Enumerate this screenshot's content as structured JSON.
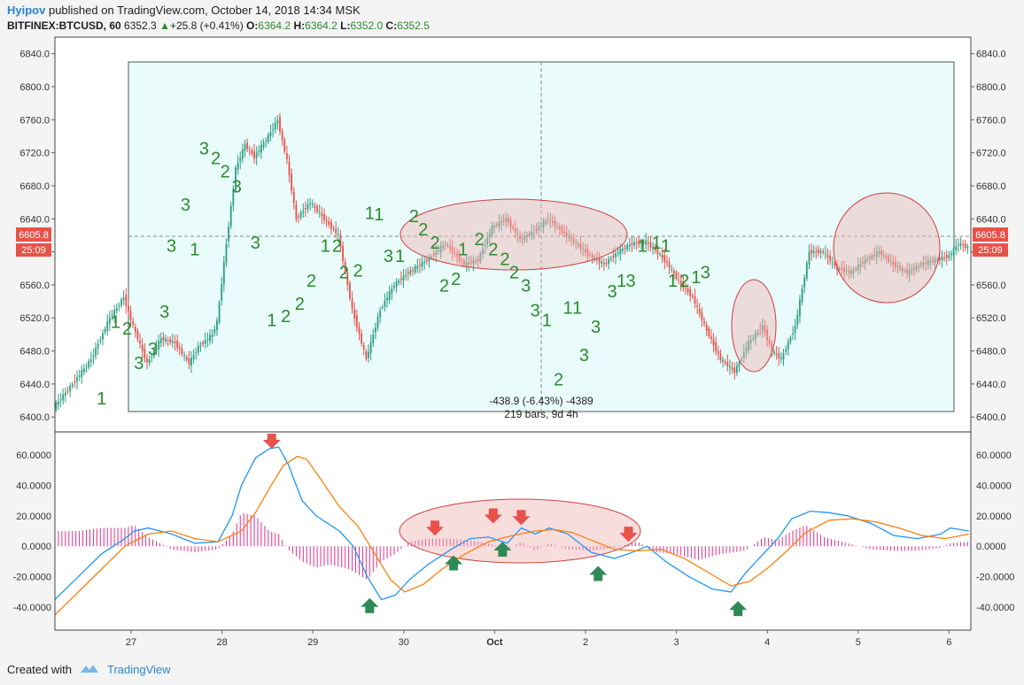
{
  "header": {
    "user": "Hyipov",
    "published": "published on TradingView.com, October 14, 2018 14:34 MSK",
    "symbol": "BITFINEX:BTCUSD, 60",
    "last": "6352.3",
    "change": "+25.8 (+0.41%)",
    "o_label": "O:",
    "o": "6364.2",
    "h_label": "H:",
    "h": "6364.2",
    "l_label": "L:",
    "l": "6352.0",
    "c_label": "C:",
    "c": "6352.5"
  },
  "footer": {
    "created": "Created with",
    "brand": "TradingView"
  },
  "colors": {
    "up": "#2e9e84",
    "down": "#e8524a",
    "macd": "#2196f3",
    "signal": "#ff7f0e",
    "hist": "#e0318a",
    "range_fill": "#e9fbfb"
  },
  "chart_data": [
    {
      "type": "candlestick",
      "title": "BITFINEX:BTCUSD, 60",
      "ylim": [
        6382,
        6860
      ],
      "y_ticks": [
        "6840.0",
        "6800.0",
        "6760.0",
        "6720.0",
        "6680.0",
        "6640.0",
        "6600.0",
        "6560.0",
        "6520.0",
        "6480.0",
        "6440.0",
        "6400.0"
      ],
      "x_ticks": [
        "27",
        "28",
        "29",
        "30",
        "Oct",
        "2",
        "3",
        "4",
        "5",
        "6"
      ],
      "price_label": "6605.8",
      "countdown": "25:09",
      "measure": {
        "line1": "-438.9 (-6.43%) -4389",
        "line2": "219 bars, 9d 4h"
      },
      "close_path": [
        [
          0,
          6412
        ],
        [
          8,
          6440
        ],
        [
          16,
          6470
        ],
        [
          24,
          6520
        ],
        [
          30,
          6545
        ],
        [
          34,
          6510
        ],
        [
          40,
          6465
        ],
        [
          46,
          6495
        ],
        [
          52,
          6490
        ],
        [
          58,
          6465
        ],
        [
          62,
          6485
        ],
        [
          68,
          6500
        ],
        [
          70,
          6515
        ],
        [
          74,
          6610
        ],
        [
          78,
          6700
        ],
        [
          82,
          6730
        ],
        [
          86,
          6715
        ],
        [
          92,
          6740
        ],
        [
          96,
          6760
        ],
        [
          100,
          6710
        ],
        [
          104,
          6640
        ],
        [
          110,
          6660
        ],
        [
          116,
          6640
        ],
        [
          122,
          6620
        ],
        [
          128,
          6530
        ],
        [
          134,
          6470
        ],
        [
          140,
          6530
        ],
        [
          146,
          6560
        ],
        [
          152,
          6575
        ],
        [
          160,
          6590
        ],
        [
          168,
          6610
        ],
        [
          176,
          6585
        ],
        [
          182,
          6590
        ],
        [
          188,
          6630
        ],
        [
          194,
          6640
        ],
        [
          200,
          6615
        ],
        [
          206,
          6625
        ],
        [
          212,
          6640
        ],
        [
          218,
          6625
        ],
        [
          224,
          6610
        ],
        [
          230,
          6595
        ],
        [
          236,
          6585
        ],
        [
          242,
          6600
        ],
        [
          248,
          6610
        ],
        [
          254,
          6612
        ],
        [
          258,
          6602
        ],
        [
          262,
          6590
        ],
        [
          268,
          6565
        ],
        [
          274,
          6545
        ],
        [
          280,
          6505
        ],
        [
          286,
          6470
        ],
        [
          292,
          6455
        ],
        [
          298,
          6490
        ],
        [
          304,
          6510
        ],
        [
          308,
          6480
        ],
        [
          312,
          6470
        ],
        [
          318,
          6510
        ],
        [
          324,
          6600
        ],
        [
          330,
          6600
        ],
        [
          336,
          6580
        ],
        [
          342,
          6575
        ],
        [
          348,
          6590
        ],
        [
          354,
          6600
        ],
        [
          360,
          6585
        ],
        [
          366,
          6575
        ],
        [
          372,
          6585
        ],
        [
          378,
          6590
        ],
        [
          384,
          6595
        ],
        [
          388,
          6610
        ],
        [
          392,
          6605
        ]
      ],
      "counts": [
        {
          "t": "1",
          "i": 20,
          "p": 6415
        },
        {
          "t": "1",
          "i": 26,
          "p": 6508
        },
        {
          "t": "2",
          "i": 31,
          "p": 6500
        },
        {
          "t": "3",
          "i": 36,
          "p": 6458
        },
        {
          "t": "3",
          "i": 42,
          "p": 6475
        },
        {
          "t": "3",
          "i": 47,
          "p": 6520
        },
        {
          "t": "3",
          "i": 50,
          "p": 6600
        },
        {
          "t": "3",
          "i": 56,
          "p": 6650
        },
        {
          "t": "1",
          "i": 60,
          "p": 6596
        },
        {
          "t": "3",
          "i": 64,
          "p": 6718
        },
        {
          "t": "2",
          "i": 69,
          "p": 6706
        },
        {
          "t": "2",
          "i": 73,
          "p": 6690
        },
        {
          "t": "3",
          "i": 78,
          "p": 6672
        },
        {
          "t": "3",
          "i": 86,
          "p": 6604
        },
        {
          "t": "1",
          "i": 93,
          "p": 6510
        },
        {
          "t": "2",
          "i": 99,
          "p": 6515
        },
        {
          "t": "2",
          "i": 105,
          "p": 6530
        },
        {
          "t": "2",
          "i": 110,
          "p": 6558
        },
        {
          "t": "1",
          "i": 116,
          "p": 6600
        },
        {
          "t": "2",
          "i": 121,
          "p": 6600
        },
        {
          "t": "2",
          "i": 124,
          "p": 6568
        },
        {
          "t": "2",
          "i": 130,
          "p": 6570
        },
        {
          "t": "1",
          "i": 135,
          "p": 6640
        },
        {
          "t": "1",
          "i": 139,
          "p": 6638
        },
        {
          "t": "3",
          "i": 143,
          "p": 6588
        },
        {
          "t": "1",
          "i": 148,
          "p": 6588
        },
        {
          "t": "2",
          "i": 154,
          "p": 6636
        },
        {
          "t": "2",
          "i": 158,
          "p": 6620
        },
        {
          "t": "2",
          "i": 163,
          "p": 6604
        },
        {
          "t": "2",
          "i": 167,
          "p": 6552
        },
        {
          "t": "2",
          "i": 172,
          "p": 6560
        },
        {
          "t": "1",
          "i": 175,
          "p": 6596
        },
        {
          "t": "2",
          "i": 182,
          "p": 6608
        },
        {
          "t": "2",
          "i": 188,
          "p": 6596
        },
        {
          "t": "2",
          "i": 193,
          "p": 6584
        },
        {
          "t": "2",
          "i": 197,
          "p": 6568
        },
        {
          "t": "3",
          "i": 202,
          "p": 6552
        },
        {
          "t": "3",
          "i": 206,
          "p": 6522
        },
        {
          "t": "1",
          "i": 211,
          "p": 6510
        },
        {
          "t": "2",
          "i": 216,
          "p": 6438
        },
        {
          "t": "1",
          "i": 220,
          "p": 6525
        },
        {
          "t": "1",
          "i": 224,
          "p": 6525
        },
        {
          "t": "3",
          "i": 227,
          "p": 6468
        },
        {
          "t": "3",
          "i": 232,
          "p": 6502
        },
        {
          "t": "3",
          "i": 239,
          "p": 6545
        },
        {
          "t": "1",
          "i": 243,
          "p": 6558
        },
        {
          "t": "3",
          "i": 247,
          "p": 6558
        },
        {
          "t": "1",
          "i": 252,
          "p": 6600
        },
        {
          "t": "1",
          "i": 258,
          "p": 6604
        },
        {
          "t": "1",
          "i": 262,
          "p": 6600
        },
        {
          "t": "1",
          "i": 265,
          "p": 6558
        },
        {
          "t": "2",
          "i": 270,
          "p": 6558
        },
        {
          "t": "1",
          "i": 275,
          "p": 6562
        },
        {
          "t": "3",
          "i": 279,
          "p": 6568
        }
      ]
    },
    {
      "type": "macd",
      "ylim": [
        -55,
        75
      ],
      "y_ticks_left": [
        "60.0000",
        "40.0000",
        "20.0000",
        "0.0000",
        "-20.0000",
        "-40.0000"
      ],
      "y_ticks_right": [
        "60.0000",
        "40.0000",
        "20.0000",
        "0.0000",
        "-20.0000",
        "-40.0000"
      ],
      "macd": [
        [
          0,
          -35
        ],
        [
          10,
          -20
        ],
        [
          20,
          -5
        ],
        [
          30,
          5
        ],
        [
          34,
          10
        ],
        [
          40,
          12
        ],
        [
          50,
          8
        ],
        [
          60,
          2
        ],
        [
          70,
          3
        ],
        [
          76,
          20
        ],
        [
          80,
          40
        ],
        [
          86,
          58
        ],
        [
          92,
          64
        ],
        [
          96,
          65
        ],
        [
          100,
          54
        ],
        [
          106,
          30
        ],
        [
          112,
          20
        ],
        [
          122,
          10
        ],
        [
          128,
          0
        ],
        [
          134,
          -20
        ],
        [
          140,
          -35
        ],
        [
          146,
          -32
        ],
        [
          152,
          -22
        ],
        [
          160,
          -12
        ],
        [
          170,
          -2
        ],
        [
          178,
          5
        ],
        [
          186,
          6
        ],
        [
          194,
          2
        ],
        [
          200,
          12
        ],
        [
          206,
          8
        ],
        [
          212,
          12
        ],
        [
          220,
          8
        ],
        [
          230,
          -4
        ],
        [
          240,
          -8
        ],
        [
          246,
          -5
        ],
        [
          254,
          0
        ],
        [
          262,
          -10
        ],
        [
          272,
          -20
        ],
        [
          282,
          -28
        ],
        [
          290,
          -30
        ],
        [
          296,
          -18
        ],
        [
          302,
          -8
        ],
        [
          310,
          5
        ],
        [
          316,
          18
        ],
        [
          324,
          23
        ],
        [
          332,
          22
        ],
        [
          340,
          20
        ],
        [
          350,
          15
        ],
        [
          360,
          7
        ],
        [
          370,
          5
        ],
        [
          380,
          8
        ],
        [
          384,
          12
        ],
        [
          392,
          10
        ]
      ],
      "signal": [
        [
          0,
          -45
        ],
        [
          10,
          -30
        ],
        [
          20,
          -15
        ],
        [
          30,
          0
        ],
        [
          40,
          8
        ],
        [
          50,
          10
        ],
        [
          60,
          5
        ],
        [
          70,
          3
        ],
        [
          80,
          10
        ],
        [
          86,
          22
        ],
        [
          92,
          38
        ],
        [
          98,
          53
        ],
        [
          104,
          59
        ],
        [
          108,
          57
        ],
        [
          114,
          44
        ],
        [
          122,
          26
        ],
        [
          130,
          13
        ],
        [
          136,
          -2
        ],
        [
          144,
          -22
        ],
        [
          150,
          -30
        ],
        [
          158,
          -25
        ],
        [
          166,
          -15
        ],
        [
          176,
          -5
        ],
        [
          186,
          3
        ],
        [
          196,
          7
        ],
        [
          206,
          10
        ],
        [
          214,
          11
        ],
        [
          222,
          9
        ],
        [
          230,
          4
        ],
        [
          240,
          -2
        ],
        [
          250,
          -3
        ],
        [
          260,
          -2
        ],
        [
          270,
          -8
        ],
        [
          280,
          -17
        ],
        [
          290,
          -26
        ],
        [
          298,
          -23
        ],
        [
          306,
          -14
        ],
        [
          314,
          -3
        ],
        [
          322,
          9
        ],
        [
          332,
          17
        ],
        [
          342,
          18
        ],
        [
          352,
          16
        ],
        [
          362,
          12
        ],
        [
          372,
          7
        ],
        [
          382,
          5
        ],
        [
          392,
          8
        ]
      ],
      "hist": [
        [
          0,
          10
        ],
        [
          10,
          10
        ],
        [
          20,
          12
        ],
        [
          30,
          12
        ],
        [
          34,
          14
        ],
        [
          40,
          6
        ],
        [
          50,
          -2
        ],
        [
          60,
          -4
        ],
        [
          70,
          -2
        ],
        [
          76,
          8
        ],
        [
          80,
          22
        ],
        [
          86,
          20
        ],
        [
          92,
          10
        ],
        [
          96,
          8
        ],
        [
          100,
          -2
        ],
        [
          106,
          -10
        ],
        [
          112,
          -14
        ],
        [
          118,
          -12
        ],
        [
          126,
          -15
        ],
        [
          134,
          -22
        ],
        [
          140,
          -10
        ],
        [
          146,
          -5
        ],
        [
          152,
          3
        ],
        [
          160,
          5
        ],
        [
          170,
          5
        ],
        [
          178,
          4
        ],
        [
          186,
          2
        ],
        [
          194,
          -2
        ],
        [
          200,
          3
        ],
        [
          206,
          -3
        ],
        [
          212,
          2
        ],
        [
          220,
          -2
        ],
        [
          230,
          -3
        ],
        [
          240,
          -1
        ],
        [
          250,
          3
        ],
        [
          258,
          -4
        ],
        [
          266,
          -5
        ],
        [
          276,
          -9
        ],
        [
          286,
          -5
        ],
        [
          296,
          -3
        ],
        [
          304,
          6
        ],
        [
          310,
          4
        ],
        [
          316,
          10
        ],
        [
          322,
          14
        ],
        [
          330,
          6
        ],
        [
          340,
          2
        ],
        [
          350,
          -2
        ],
        [
          360,
          -3
        ],
        [
          370,
          -3
        ],
        [
          380,
          -1
        ],
        [
          384,
          2
        ],
        [
          392,
          3
        ]
      ],
      "arrows_down": [
        [
          93,
          68
        ],
        [
          163,
          11
        ],
        [
          188,
          19
        ],
        [
          200,
          18
        ],
        [
          246,
          7
        ]
      ],
      "arrows_up": [
        [
          135,
          -38
        ],
        [
          171,
          -10
        ],
        [
          192,
          -1
        ],
        [
          233,
          -17
        ],
        [
          293,
          -40
        ]
      ]
    }
  ]
}
